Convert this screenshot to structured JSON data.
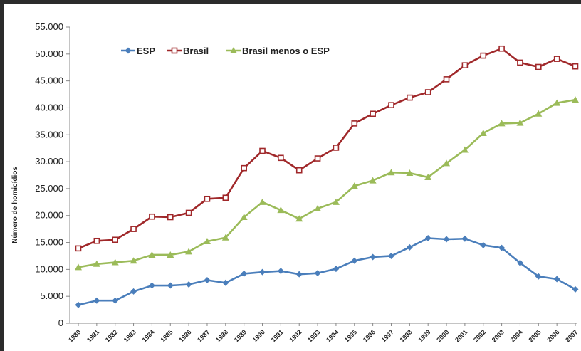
{
  "chart_data": {
    "type": "line",
    "ylabel": "Número de homicídios",
    "ylim": [
      0,
      55000
    ],
    "y_ticks": [
      0,
      5000,
      10000,
      15000,
      20000,
      25000,
      30000,
      35000,
      40000,
      45000,
      50000,
      55000
    ],
    "y_tick_labels": [
      "0",
      "5.000",
      "10.000",
      "15.000",
      "20.000",
      "25.000",
      "30.000",
      "35.000",
      "40.000",
      "45.000",
      "50.000",
      "55.000"
    ],
    "x": [
      "1980",
      "1981",
      "1982",
      "1983",
      "1984",
      "1985",
      "1986",
      "1987",
      "1988",
      "1989",
      "1990",
      "1991",
      "1992",
      "1993",
      "1994",
      "1995",
      "1996",
      "1997",
      "1998",
      "1999",
      "2000",
      "2001",
      "2002",
      "2003",
      "2004",
      "2005",
      "2006",
      "2007"
    ],
    "legend_position": "top-left",
    "grid": false,
    "series": [
      {
        "name": "ESP",
        "color": "#4a7ebb",
        "marker": "diamond",
        "values": [
          3400,
          4200,
          4200,
          5900,
          7000,
          7000,
          7200,
          8000,
          7500,
          9200,
          9500,
          9700,
          9100,
          9300,
          10100,
          11600,
          12300,
          12500,
          14100,
          15800,
          15600,
          15700,
          14500,
          14000,
          11200,
          8700,
          8200,
          6300
        ]
      },
      {
        "name": "Brasil",
        "color": "#a0282a",
        "marker": "square-open",
        "values": [
          13900,
          15300,
          15500,
          17500,
          19800,
          19700,
          20500,
          23100,
          23300,
          28800,
          32000,
          30700,
          28400,
          30600,
          32600,
          37100,
          38900,
          40500,
          41900,
          42900,
          45300,
          47900,
          49700,
          51000,
          48400,
          47600,
          49100,
          47700
        ]
      },
      {
        "name": "Brasil menos o ESP",
        "color": "#9bbb59",
        "marker": "triangle",
        "values": [
          10400,
          11000,
          11300,
          11600,
          12700,
          12700,
          13300,
          15200,
          15900,
          19700,
          22500,
          21000,
          19400,
          21300,
          22500,
          25500,
          26500,
          28000,
          27900,
          27100,
          29700,
          32200,
          35300,
          37100,
          37200,
          38900,
          40900,
          41500
        ]
      }
    ]
  }
}
